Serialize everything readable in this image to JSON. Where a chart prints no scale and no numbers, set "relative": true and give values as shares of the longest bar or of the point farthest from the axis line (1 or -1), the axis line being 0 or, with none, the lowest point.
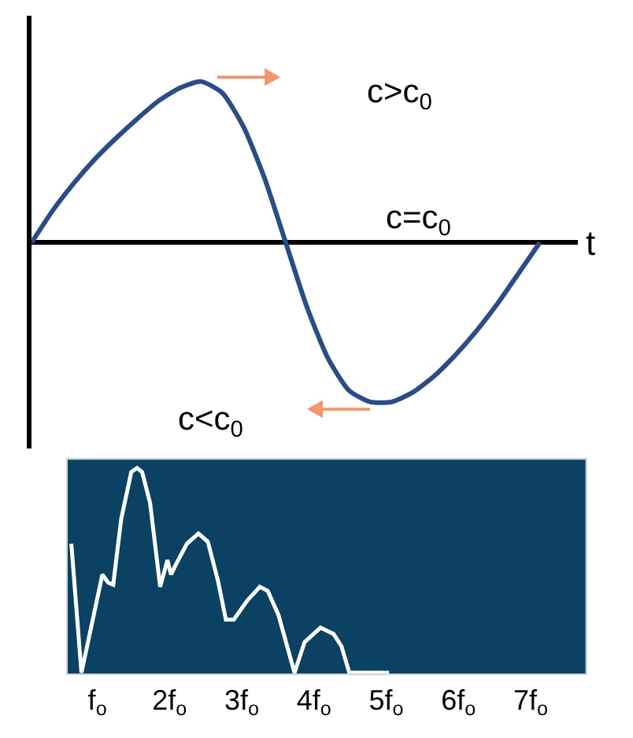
{
  "chart_data": [
    {
      "type": "line",
      "relative": true,
      "tick_labels": false,
      "xlabel": "t",
      "categories": [
        null,
        null,
        null,
        null,
        null,
        null,
        null,
        null,
        null,
        null,
        null,
        null,
        null,
        null,
        null,
        null,
        null,
        null,
        null,
        null,
        null,
        null,
        null,
        null,
        null
      ],
      "series": [
        {
          "color": "#2b4c86",
          "values": [
            0,
            0.2,
            0.37,
            0.52,
            0.65,
            0.77,
            0.88,
            0.96,
            1.0,
            0.93,
            0.72,
            0.4,
            0.0,
            -0.4,
            -0.72,
            -0.92,
            -0.99,
            -0.99,
            -0.93,
            -0.83,
            -0.7,
            -0.55,
            -0.38,
            -0.19,
            0
          ]
        }
      ],
      "annotations": [
        "c>c$_{0}$",
        "c=c$_{0}$",
        "c<c$_{0}$"
      ]
    },
    {
      "type": "line",
      "relative": true,
      "tick_labels": "x",
      "xlim": [
        0.59,
        7.76
      ],
      "xticks": [
        {
          "value": 1,
          "label": "f$_{o}$"
        },
        {
          "value": 2,
          "label": "2f$_{o}$"
        },
        {
          "value": 3,
          "label": "3f$_{o}$"
        },
        {
          "value": 4,
          "label": "4f$_{o}$"
        },
        {
          "value": 5,
          "label": "5f$_{o}$"
        },
        {
          "value": 6,
          "label": "6f$_{o}$"
        },
        {
          "value": 7,
          "label": "7f$_{o}$"
        }
      ],
      "series": [
        {
          "color": "#ffffff",
          "x": [
            0.64,
            0.78,
            1.07,
            1.15,
            1.22,
            1.33,
            1.47,
            1.55,
            1.62,
            1.73,
            1.87,
            1.97,
            2.02,
            2.09,
            2.24,
            2.4,
            2.53,
            2.67,
            2.78,
            2.89,
            3.07,
            3.25,
            3.36,
            3.51,
            3.73,
            3.87,
            4.09,
            4.27,
            4.38,
            4.49,
            5.04
          ],
          "values": [
            0.63,
            0,
            0.48,
            0.44,
            0.43,
            0.75,
            0.98,
            1.0,
            0.98,
            0.83,
            0.42,
            0.55,
            0.48,
            0.53,
            0.63,
            0.68,
            0.64,
            0.45,
            0.26,
            0.26,
            0.35,
            0.42,
            0.4,
            0.28,
            0,
            0.15,
            0.22,
            0.19,
            0.13,
            0,
            0
          ]
        }
      ]
    }
  ]
}
